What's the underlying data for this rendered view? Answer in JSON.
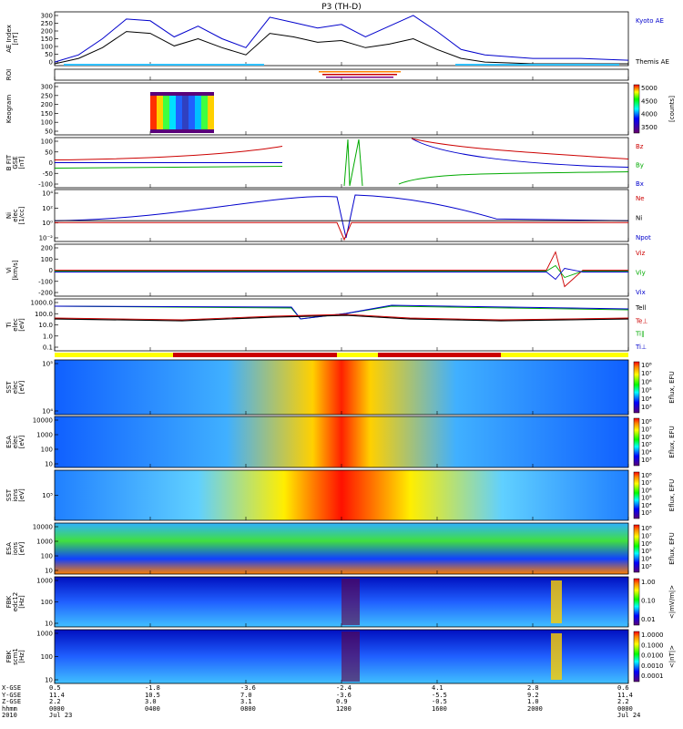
{
  "title": "P3 (TH-D)",
  "panels": [
    {
      "id": "ae",
      "ylabel": [
        "AE Index",
        "[nT]"
      ],
      "ticks": [
        "300",
        "250",
        "200",
        "150",
        "100",
        "50",
        "0"
      ],
      "legend": [
        {
          "text": "Kyoto AE",
          "color": "#0000cc"
        },
        {
          "text": "Themis AE",
          "color": "#000000"
        }
      ]
    },
    {
      "id": "roi",
      "ylabel": [
        "ROI"
      ],
      "ticks": []
    },
    {
      "id": "keogram",
      "ylabel": [
        "Keogram"
      ],
      "ticks": [
        "300",
        "250",
        "200",
        "150",
        "100",
        "50"
      ],
      "colorbar": {
        "ticks": [
          "5000",
          "4500",
          "4000",
          "3500"
        ],
        "label": "[counts]"
      }
    },
    {
      "id": "bfit",
      "ylabel": [
        "B FIT",
        "GSE",
        "[nT]"
      ],
      "ticks": [
        "100",
        "50",
        "0",
        "-50",
        "-100"
      ],
      "legend": [
        {
          "text": "Bz",
          "color": "#cc0000"
        },
        {
          "text": "By",
          "color": "#00aa00"
        },
        {
          "text": "Bx",
          "color": "#0000cc"
        }
      ]
    },
    {
      "id": "ni",
      "ylabel": [
        "Ni",
        "elec",
        "[1/cc]"
      ],
      "ticks": [
        "10⁴",
        "10²",
        "10⁰",
        "10⁻²"
      ],
      "legend": [
        {
          "text": "Ne",
          "color": "#cc0000"
        },
        {
          "text": "Ni",
          "color": "#000000"
        },
        {
          "text": "Npot",
          "color": "#0000cc"
        }
      ]
    },
    {
      "id": "vi",
      "ylabel": [
        "Vi",
        "[km/s]"
      ],
      "ticks": [
        "200",
        "100",
        "0",
        "-100",
        "-200"
      ],
      "legend": [
        {
          "text": "Viz",
          "color": "#cc0000"
        },
        {
          "text": "Viy",
          "color": "#00aa00"
        },
        {
          "text": "Vix",
          "color": "#0000cc"
        }
      ]
    },
    {
      "id": "ti",
      "ylabel": [
        "Ti",
        "elec",
        "[eV]"
      ],
      "ticks": [
        "1000.0",
        "100.0",
        "10.0",
        "1.0",
        "0.1"
      ],
      "legend": [
        {
          "text": "Tell",
          "color": "#000000"
        },
        {
          "text": "Te⊥",
          "color": "#cc0000"
        },
        {
          "text": "Ti∥",
          "color": "#00aa00"
        },
        {
          "text": "Ti⊥",
          "color": "#0000cc"
        }
      ]
    },
    {
      "id": "sst_e",
      "ylabel": [
        "SST",
        "elec",
        "[eV]"
      ],
      "ticks": [
        "10⁵",
        "10⁴"
      ],
      "colorbar": {
        "ticks": [
          "10⁸",
          "10⁷",
          "10⁶",
          "10⁵",
          "10⁴",
          "10³"
        ],
        "label": "Eflux, EFU"
      }
    },
    {
      "id": "esa_e",
      "ylabel": [
        "ESA",
        "elec",
        "[eV]"
      ],
      "ticks": [
        "10000",
        "1000",
        "100",
        "10"
      ],
      "colorbar": {
        "ticks": [
          "10⁸",
          "10⁷",
          "10⁶",
          "10⁵",
          "10⁴",
          "10³"
        ],
        "label": "Eflux, EFU"
      }
    },
    {
      "id": "sst_i",
      "ylabel": [
        "SST",
        "ions",
        "[eV]"
      ],
      "ticks": [
        "10⁵"
      ],
      "colorbar": {
        "ticks": [
          "10⁸",
          "10⁷",
          "10⁶",
          "10⁵",
          "10⁴",
          "10³"
        ],
        "label": "Eflux, EFU"
      }
    },
    {
      "id": "esa_i",
      "ylabel": [
        "ESA",
        "ions",
        "[eV]"
      ],
      "ticks": [
        "10000",
        "1000",
        "100",
        "10"
      ],
      "colorbar": {
        "ticks": [
          "10⁸",
          "10⁷",
          "10⁶",
          "10⁵",
          "10⁴",
          "10³"
        ],
        "label": "Eflux, EFU"
      }
    },
    {
      "id": "fbk_e",
      "ylabel": [
        "FBK",
        "edc12",
        "[Hz]"
      ],
      "ticks": [
        "1000",
        "100",
        "10"
      ],
      "colorbar": {
        "ticks": [
          "1.00",
          "0.10",
          "0.01"
        ],
        "label": "<|mV/m|>"
      }
    },
    {
      "id": "fbk_b",
      "ylabel": [
        "FBK",
        "scm1",
        "[Hz]"
      ],
      "ticks": [
        "1000",
        "100",
        "10"
      ],
      "colorbar": {
        "ticks": [
          "1.0000",
          "0.1000",
          "0.0100",
          "0.0010",
          "0.0001"
        ],
        "label": "<|nT|>"
      }
    }
  ],
  "ephemeris": {
    "labels": [
      "X-GSE",
      "Y-GSE",
      "Z-GSE",
      "hhmm",
      "2010"
    ],
    "columns": [
      [
        "0.5",
        "11.4",
        "2.2",
        "0000",
        "Jul 23"
      ],
      [
        "-1.8",
        "10.5",
        "3.0",
        "0400",
        ""
      ],
      [
        "-3.6",
        "7.0",
        "3.1",
        "0800",
        ""
      ],
      [
        "-2.4",
        "-3.6",
        "0.9",
        "1200",
        ""
      ],
      [
        "4.1",
        "-5.5",
        "-0.5",
        "1600",
        ""
      ],
      [
        "2.8",
        "9.2",
        "1.0",
        "2000",
        ""
      ],
      [
        "0.6",
        "11.4",
        "2.2",
        "0000",
        "Jul 24"
      ]
    ]
  },
  "chart_data": {
    "type": "line",
    "title": "P3 (TH-D)",
    "x_range": [
      "2010-07-23 00:00",
      "2010-07-24 00:00"
    ],
    "x_tick_labels": [
      "0000",
      "0400",
      "0800",
      "1200",
      "1600",
      "2000",
      "0000"
    ],
    "series": [
      {
        "name": "Kyoto AE",
        "color": "#0000cc",
        "x_hours": [
          0,
          1,
          2,
          3,
          4,
          5,
          6,
          7,
          8,
          9,
          10,
          11,
          12,
          13,
          14,
          15,
          16,
          17,
          18,
          19,
          20,
          21,
          22,
          23,
          24
        ],
        "values": [
          20,
          60,
          150,
          260,
          250,
          160,
          220,
          150,
          100,
          270,
          240,
          210,
          230,
          160,
          220,
          280,
          190,
          90,
          60,
          50,
          40,
          40,
          40,
          35,
          30
        ]
      },
      {
        "name": "Themis AE",
        "color": "#000000",
        "x_hours": [
          0,
          1,
          2,
          3,
          4,
          5,
          6,
          7,
          8,
          9,
          10,
          11,
          12,
          13,
          14,
          15,
          16,
          17,
          18,
          19,
          20,
          21,
          22,
          23,
          24
        ],
        "values": [
          10,
          40,
          100,
          190,
          180,
          110,
          150,
          100,
          60,
          180,
          160,
          130,
          140,
          100,
          120,
          150,
          90,
          40,
          20,
          15,
          10,
          10,
          10,
          10,
          10
        ]
      }
    ],
    "ylim": [
      0,
      300
    ]
  }
}
